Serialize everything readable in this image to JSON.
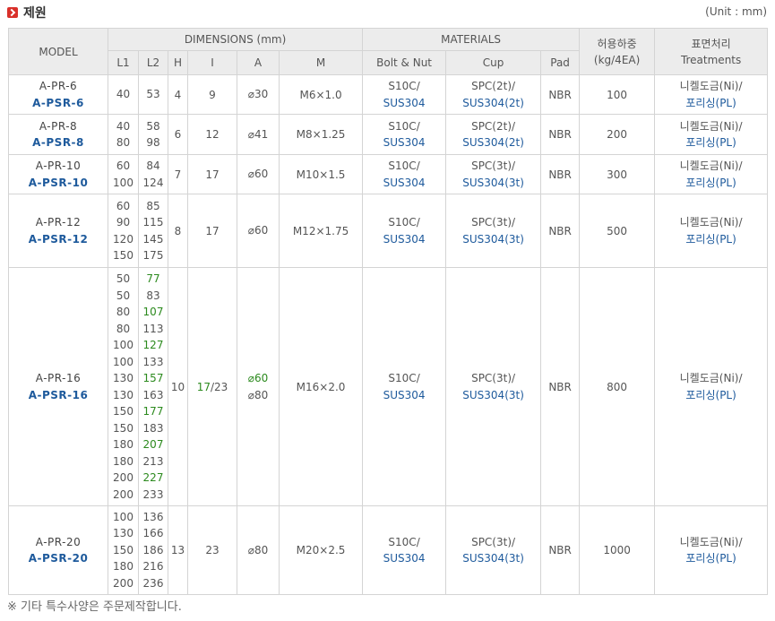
{
  "header": {
    "title": "제원",
    "unit": "(Unit : mm)"
  },
  "columns": {
    "model": "MODEL",
    "dimensions": "DIMENSIONS (mm)",
    "materials": "MATERIALS",
    "load_top": "허용하중",
    "load_bottom": "(kg/4EA)",
    "treat_top": "표면처리",
    "treat_bottom": "Treatments",
    "sub": [
      "L1",
      "L2",
      "H",
      "I",
      "A",
      "M",
      "Bolt & Nut",
      "Cup",
      "Pad"
    ]
  },
  "rows": [
    {
      "pr": "A-PR-6",
      "psr": "A-PSR-6",
      "l1": [
        "40"
      ],
      "l2": [
        {
          "v": "53"
        }
      ],
      "h": "4",
      "i": [
        {
          "v": "9"
        }
      ],
      "a": [
        {
          "v": "⌀30"
        }
      ],
      "m": "M6×1.0",
      "bolt": [
        "S10C/",
        "SUS304"
      ],
      "cup": [
        "SPC(2t)/",
        "SUS304(2t)"
      ],
      "pad": "NBR",
      "load": "100",
      "treat": [
        "니켈도금(Ni)/",
        "포리싱(PL)"
      ]
    },
    {
      "pr": "A-PR-8",
      "psr": "A-PSR-8",
      "l1": [
        "40",
        "80"
      ],
      "l2": [
        {
          "v": "58"
        },
        {
          "v": "98"
        }
      ],
      "h": "6",
      "i": [
        {
          "v": "12"
        }
      ],
      "a": [
        {
          "v": "⌀41"
        }
      ],
      "m": "M8×1.25",
      "bolt": [
        "S10C/",
        "SUS304"
      ],
      "cup": [
        "SPC(2t)/",
        "SUS304(2t)"
      ],
      "pad": "NBR",
      "load": "200",
      "treat": [
        "니켈도금(Ni)/",
        "포리싱(PL)"
      ]
    },
    {
      "pr": "A-PR-10",
      "psr": "A-PSR-10",
      "l1": [
        "60",
        "100"
      ],
      "l2": [
        {
          "v": "84"
        },
        {
          "v": "124"
        }
      ],
      "h": "7",
      "i": [
        {
          "v": "17"
        }
      ],
      "a": [
        {
          "v": "⌀60"
        }
      ],
      "m": "M10×1.5",
      "bolt": [
        "S10C/",
        "SUS304"
      ],
      "cup": [
        "SPC(3t)/",
        "SUS304(3t)"
      ],
      "pad": "NBR",
      "load": "300",
      "treat": [
        "니켈도금(Ni)/",
        "포리싱(PL)"
      ]
    },
    {
      "pr": "A-PR-12",
      "psr": "A-PSR-12",
      "l1": [
        "60",
        "90",
        "120",
        "150"
      ],
      "l2": [
        {
          "v": "85"
        },
        {
          "v": "115"
        },
        {
          "v": "145"
        },
        {
          "v": "175"
        }
      ],
      "h": "8",
      "i": [
        {
          "v": "17"
        }
      ],
      "a": [
        {
          "v": "⌀60"
        }
      ],
      "m": "M12×1.75",
      "bolt": [
        "S10C/",
        "SUS304"
      ],
      "cup": [
        "SPC(3t)/",
        "SUS304(3t)"
      ],
      "pad": "NBR",
      "load": "500",
      "treat": [
        "니켈도금(Ni)/",
        "포리싱(PL)"
      ]
    },
    {
      "pr": "A-PR-16",
      "psr": "A-PSR-16",
      "l1": [
        "50",
        "50",
        "80",
        "80",
        "100",
        "100",
        "130",
        "130",
        "150",
        "150",
        "180",
        "180",
        "200",
        "200"
      ],
      "l2": [
        {
          "v": "77",
          "g": true
        },
        {
          "v": "83"
        },
        {
          "v": "107",
          "g": true
        },
        {
          "v": "113"
        },
        {
          "v": "127",
          "g": true
        },
        {
          "v": "133"
        },
        {
          "v": "157",
          "g": true
        },
        {
          "v": "163"
        },
        {
          "v": "177",
          "g": true
        },
        {
          "v": "183"
        },
        {
          "v": "207",
          "g": true
        },
        {
          "v": "213"
        },
        {
          "v": "227",
          "g": true
        },
        {
          "v": "233"
        }
      ],
      "h": "10",
      "i": [
        {
          "v": "17",
          "g": true
        },
        {
          "v": "/23"
        }
      ],
      "a": [
        {
          "v": "⌀60",
          "g": true
        },
        {
          "v": "⌀80"
        }
      ],
      "m": "M16×2.0",
      "bolt": [
        "S10C/",
        "SUS304"
      ],
      "cup": [
        "SPC(3t)/",
        "SUS304(3t)"
      ],
      "pad": "NBR",
      "load": "800",
      "treat": [
        "니켈도금(Ni)/",
        "포리싱(PL)"
      ]
    },
    {
      "pr": "A-PR-20",
      "psr": "A-PSR-20",
      "l1": [
        "100",
        "130",
        "150",
        "180",
        "200"
      ],
      "l2": [
        {
          "v": "136"
        },
        {
          "v": "166"
        },
        {
          "v": "186"
        },
        {
          "v": "216"
        },
        {
          "v": "236"
        }
      ],
      "h": "13",
      "i": [
        {
          "v": "23"
        }
      ],
      "a": [
        {
          "v": "⌀80"
        }
      ],
      "m": "M20×2.5",
      "bolt": [
        "S10C/",
        "SUS304"
      ],
      "cup": [
        "SPC(3t)/",
        "SUS304(3t)"
      ],
      "pad": "NBR",
      "load": "1000",
      "treat": [
        "니켈도금(Ni)/",
        "포리싱(PL)"
      ]
    }
  ],
  "note": "※ 기타 특수사양은 주문제작합니다.",
  "colors": {
    "blue": "#1e5a9c",
    "green": "#2c8a1e",
    "header_bg": "#ececec",
    "icon_red": "#d9302a"
  }
}
